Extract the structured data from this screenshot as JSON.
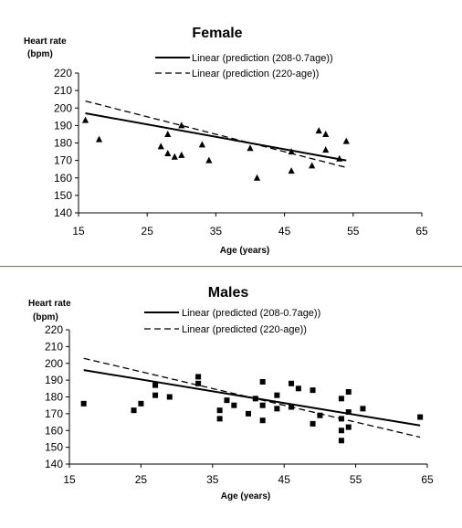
{
  "chart_data": [
    {
      "type": "scatter",
      "title": "Female",
      "ylabel_line1": "Heart rate",
      "ylabel_line2": "(bpm)",
      "xlabel": "Age (years)",
      "xlim": [
        15,
        65
      ],
      "ylim": [
        140,
        220
      ],
      "xticks": [
        15,
        25,
        35,
        45,
        55,
        65
      ],
      "yticks": [
        140,
        150,
        160,
        170,
        180,
        190,
        200,
        210,
        220
      ],
      "marker": "triangle",
      "points": [
        [
          16,
          193
        ],
        [
          18,
          182
        ],
        [
          27,
          178
        ],
        [
          28,
          174
        ],
        [
          28,
          185
        ],
        [
          29,
          172
        ],
        [
          30,
          173
        ],
        [
          30,
          190
        ],
        [
          33,
          179
        ],
        [
          34,
          170
        ],
        [
          40,
          177
        ],
        [
          41,
          160
        ],
        [
          46,
          175
        ],
        [
          46,
          164
        ],
        [
          49,
          167
        ],
        [
          50,
          187
        ],
        [
          51,
          185
        ],
        [
          51,
          176
        ],
        [
          53,
          171
        ],
        [
          54,
          181
        ]
      ],
      "lines": [
        {
          "name": "Linear (prediction (208-0.7age))",
          "style": "solid",
          "x": [
            16,
            54
          ],
          "y": [
            197,
            170
          ]
        },
        {
          "name": "Linear (prediction (220-age))",
          "style": "dashed",
          "x": [
            16,
            54
          ],
          "y": [
            204,
            166
          ]
        }
      ]
    },
    {
      "type": "scatter",
      "title": "Males",
      "ylabel_line1": "Heart rate",
      "ylabel_line2": "(bpm)",
      "xlabel": "Age (years)",
      "xlim": [
        15,
        65
      ],
      "ylim": [
        140,
        220
      ],
      "xticks": [
        15,
        25,
        35,
        45,
        55,
        65
      ],
      "yticks": [
        140,
        150,
        160,
        170,
        180,
        190,
        200,
        210,
        220
      ],
      "marker": "square",
      "points": [
        [
          17,
          176
        ],
        [
          24,
          172
        ],
        [
          25,
          176
        ],
        [
          27,
          187
        ],
        [
          27,
          181
        ],
        [
          29,
          180
        ],
        [
          33,
          192
        ],
        [
          33,
          188
        ],
        [
          36,
          172
        ],
        [
          36,
          167
        ],
        [
          37,
          178
        ],
        [
          38,
          175
        ],
        [
          40,
          170
        ],
        [
          41,
          179
        ],
        [
          42,
          189
        ],
        [
          42,
          175
        ],
        [
          42,
          166
        ],
        [
          44,
          181
        ],
        [
          44,
          173
        ],
        [
          46,
          188
        ],
        [
          46,
          174
        ],
        [
          47,
          185
        ],
        [
          49,
          184
        ],
        [
          49,
          164
        ],
        [
          50,
          169
        ],
        [
          53,
          179
        ],
        [
          53,
          167
        ],
        [
          53,
          160
        ],
        [
          53,
          154
        ],
        [
          54,
          183
        ],
        [
          54,
          171
        ],
        [
          54,
          162
        ],
        [
          56,
          173
        ],
        [
          64,
          168
        ]
      ],
      "lines": [
        {
          "name": "Linear (predicted (208-0.7age))",
          "style": "solid",
          "x": [
            17,
            64
          ],
          "y": [
            196,
            163
          ]
        },
        {
          "name": "Linear (predicted (220-age))",
          "style": "dashed",
          "x": [
            17,
            64
          ],
          "y": [
            203,
            156
          ]
        }
      ]
    }
  ]
}
